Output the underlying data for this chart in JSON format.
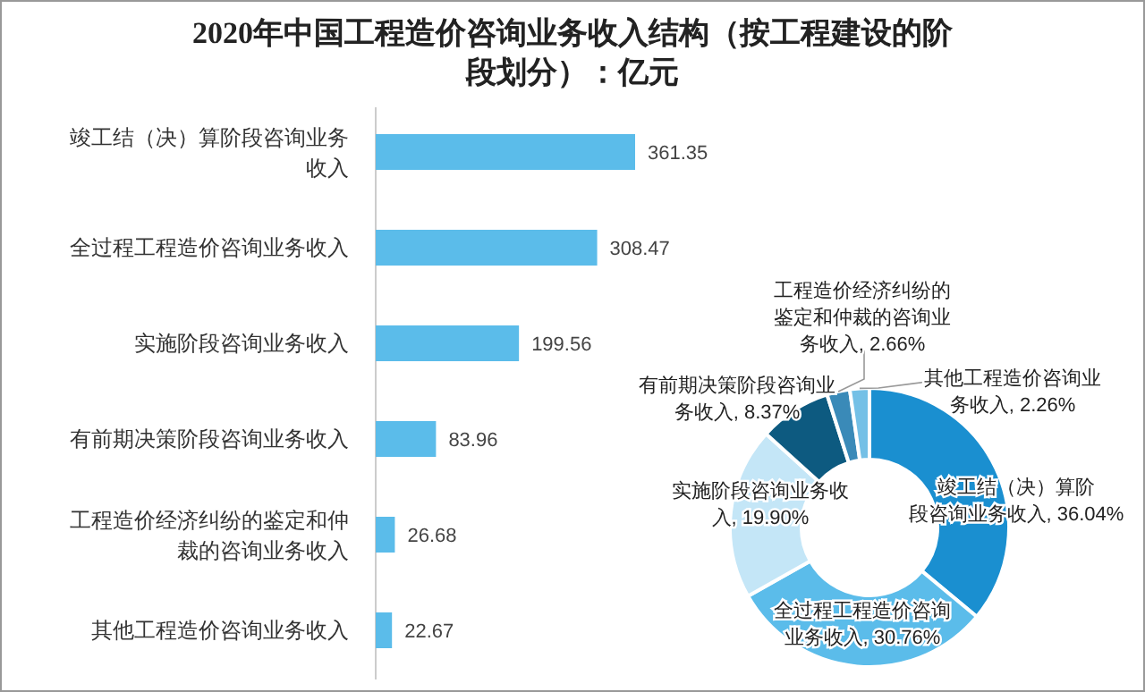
{
  "chart_data": [
    {
      "type": "bar",
      "orientation": "horizontal",
      "title": "2020年中国工程造价咨询业务收入结构（按工程建设的阶段划分）：亿元",
      "categories": [
        "竣工结（决）算阶段咨询业务收入",
        "全过程工程造价咨询业务收入",
        "实施阶段咨询业务收入",
        "有前期决策阶段咨询业务收入",
        "工程造价经济纠纷的鉴定和仲裁的咨询业务收入",
        "其他工程造价咨询业务收入"
      ],
      "values": [
        361.35,
        308.47,
        199.56,
        83.96,
        26.68,
        22.67
      ],
      "color": "#5bbcea",
      "data_labels": true,
      "tick_labels": "y",
      "grid": false,
      "legend": false
    },
    {
      "type": "donut",
      "categories": [
        "竣工结（决）算阶段咨询业务收入",
        "全过程工程造价咨询业务收入",
        "实施阶段咨询业务收入",
        "有前期决策阶段咨询业务收入",
        "工程造价经济纠纷的鉴定和仲裁的咨询业务收入",
        "其他工程造价咨询业务收入"
      ],
      "values": [
        36.04,
        30.76,
        19.9,
        8.37,
        2.66,
        2.26
      ],
      "value_labels": [
        "36.04%",
        "30.76%",
        "19.90%",
        "8.37%",
        "2.66%",
        "2.26%"
      ],
      "colors": [
        "#1a8fd0",
        "#5bbcea",
        "#c4e6f7",
        "#0d5a80",
        "#3a8ab8",
        "#74c0e6"
      ],
      "legend": false
    }
  ]
}
